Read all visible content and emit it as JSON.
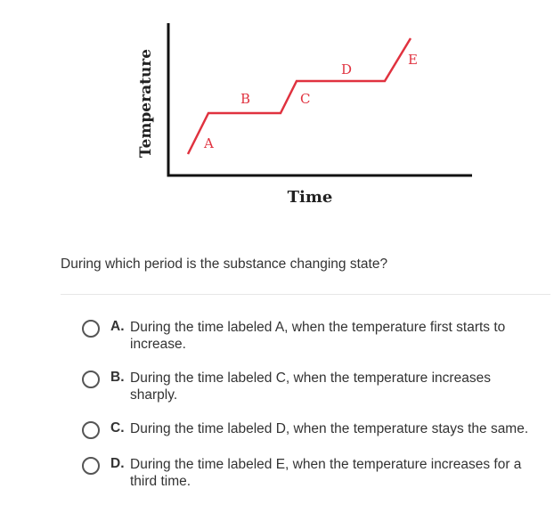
{
  "graph": {
    "ylabel": "Temperature",
    "xlabel": "Time",
    "line_color": "#e0323f",
    "segments": [
      "A",
      "B",
      "C",
      "D",
      "E"
    ]
  },
  "question": "During which period is the substance changing state?",
  "choices": [
    {
      "letter": "A.",
      "text": "During the time labeled A, when the temperature first starts to increase."
    },
    {
      "letter": "B.",
      "text": "During the time labeled C, when the temperature increases sharply."
    },
    {
      "letter": "C.",
      "text": "During the time labeled D, when the temperature stays the same."
    },
    {
      "letter": "D.",
      "text": "During the time labeled E, when the temperature increases for a third time."
    }
  ]
}
